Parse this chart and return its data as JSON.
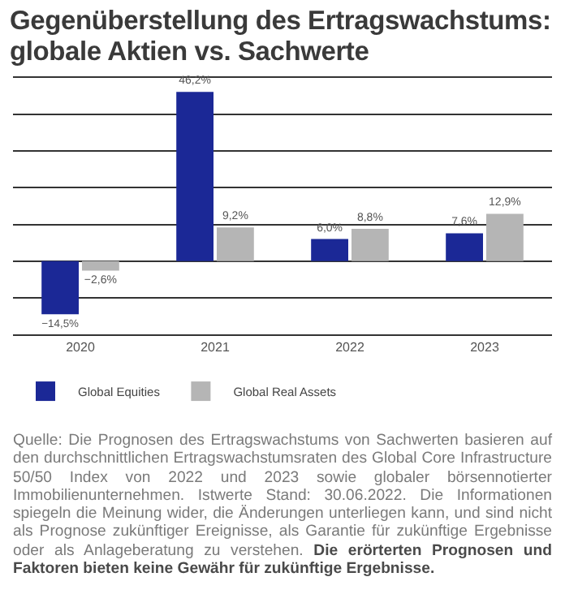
{
  "chart_data": {
    "type": "bar",
    "title": "Gegenüberstellung des Ertragswachstums: globale Aktien vs. Sachwerte",
    "categories": [
      "2020",
      "2021",
      "2022",
      "2023"
    ],
    "series": [
      {
        "name": "Global Equities",
        "color": "#1b2896",
        "values": [
          -14.5,
          46.2,
          6.0,
          7.6
        ],
        "value_labels": [
          "−14,5%",
          "46,2%",
          "6,0%",
          "7,6%"
        ]
      },
      {
        "name": "Global Real Assets",
        "color": "#b5b5b5",
        "values": [
          -2.6,
          9.2,
          8.8,
          12.9
        ],
        "value_labels": [
          "−2,6%",
          "9,2%",
          "8,8%",
          "12,9%"
        ]
      }
    ],
    "ylim": [
      -20,
      50
    ],
    "yticks": [
      {
        "value": -20,
        "label": null
      },
      {
        "value": -10,
        "label": null
      },
      {
        "value": 0,
        "label": null
      },
      {
        "value": 10,
        "label": null
      },
      {
        "value": 20,
        "label": null
      },
      {
        "value": 30,
        "label": null
      },
      {
        "value": 40,
        "label": null
      },
      {
        "value": 50,
        "label": null
      }
    ],
    "tick_labels": "x",
    "grid": "y",
    "legend": "bottom left",
    "annotations": [
      "Quelle: Die Prognosen des Ertragswachstums von Sachwerten basieren auf den durchschnittlichen Ertragswachstumsraten des Global Core Infrastructure 50/50 Index von 2022 und 2023 sowie globaler börsennotierter Immobilienunternehmen. Istwerte Stand: 30.06.2022. Die Informationen spiegeln die Meinung wider, die Änderungen unterliegen kann, und sind nicht als Prognose zukünftiger Ereignisse, als Garantie für zukünftige Ergebnisse oder als Anlageberatung zu verstehen.",
      "Die erörterten Prognosen und Faktoren bieten keine Gewähr für zukünftige Ergebnisse."
    ]
  }
}
